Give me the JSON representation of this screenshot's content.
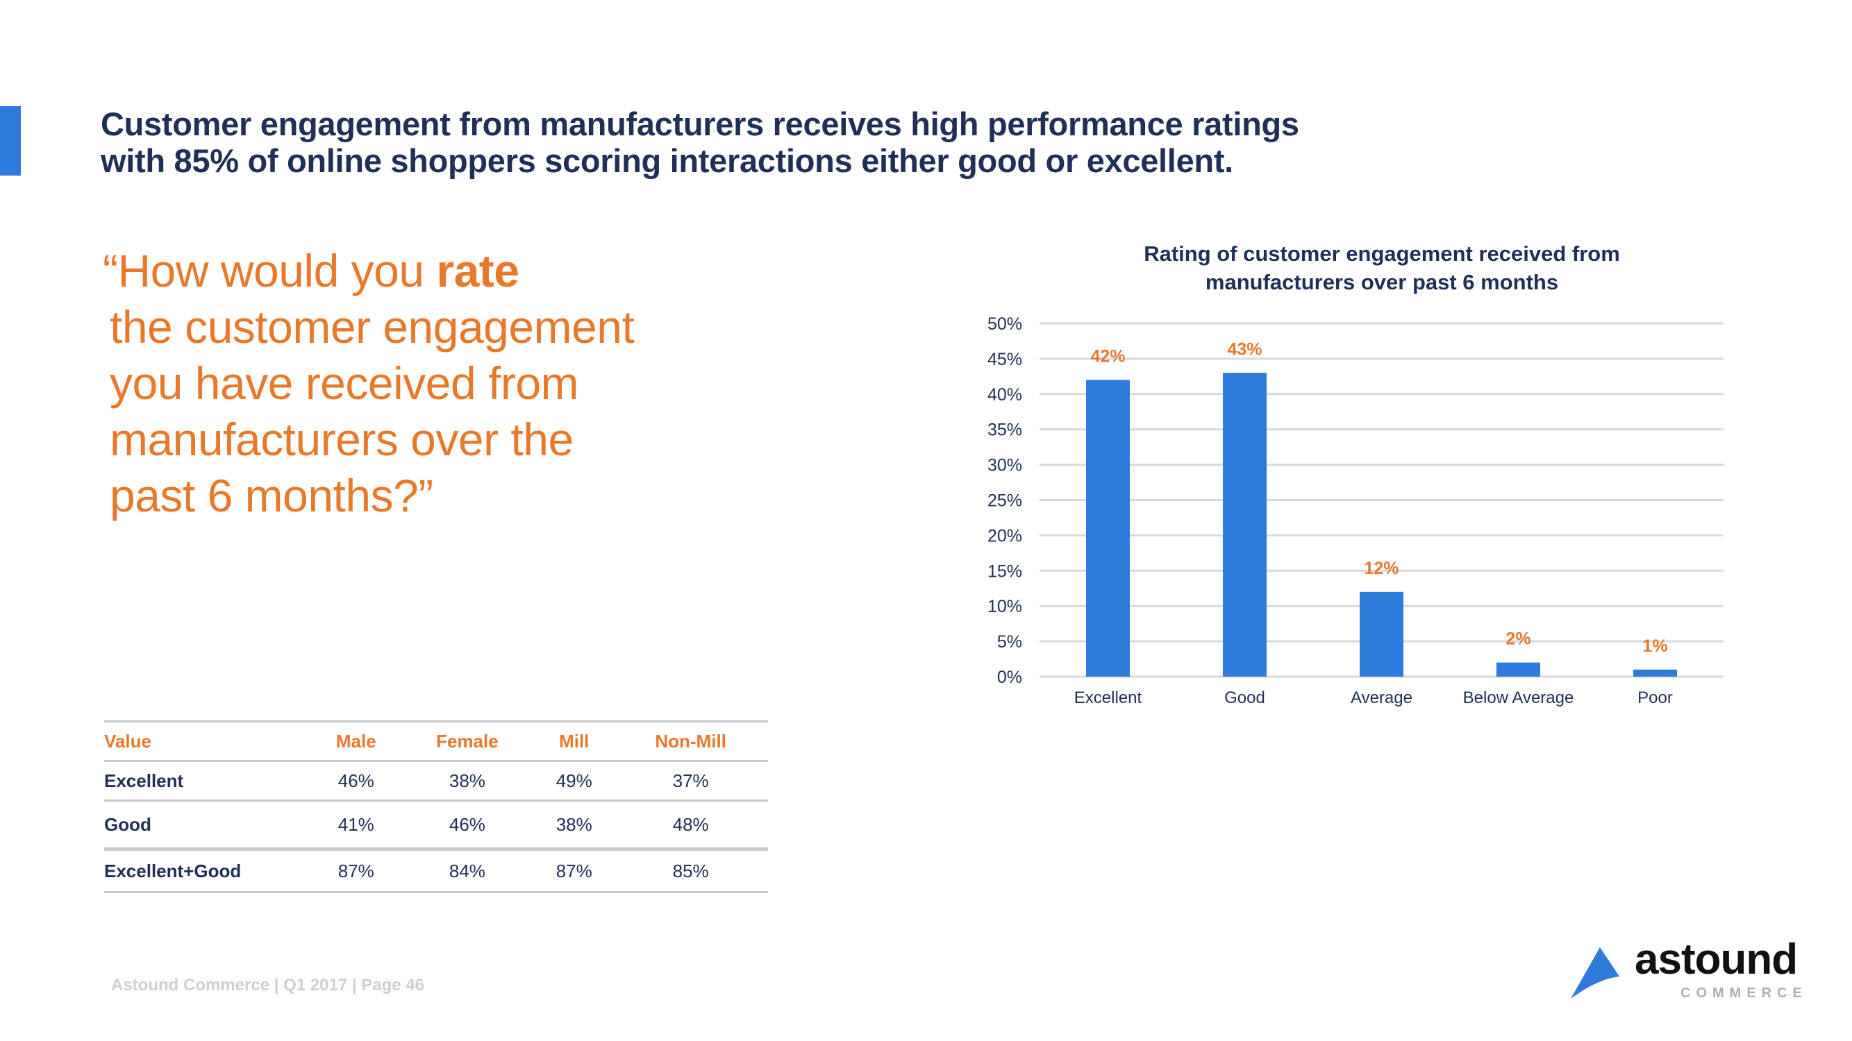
{
  "headline": {
    "line1": "Customer engagement from manufacturers receives high performance ratings",
    "line2": "with 85% of online shoppers scoring interactions either good or excellent."
  },
  "quote": {
    "line1_pre": "“How would you ",
    "line1_bold": "rate",
    "line2": "the customer engagement",
    "line3": "you have received from",
    "line4": "manufacturers over the",
    "line5": "past 6 months?”"
  },
  "colors": {
    "accent": "#2F7BDB",
    "bar": "#2F7BDB",
    "highlight": "#E8782A",
    "text": "#1F2F57",
    "grid": "#D9D9D9"
  },
  "chart_data": {
    "type": "bar",
    "title_line1": "Rating of customer engagement received from",
    "title_line2": "manufacturers over past 6 months",
    "categories": [
      "Excellent",
      "Good",
      "Average",
      "Below Average",
      "Poor"
    ],
    "values": [
      42,
      43,
      12,
      2,
      1
    ],
    "value_labels": [
      "42%",
      "43%",
      "12%",
      "2%",
      "1%"
    ],
    "xlabel": "",
    "ylabel": "",
    "ylim": [
      0,
      50
    ],
    "yticks": [
      0,
      5,
      10,
      15,
      20,
      25,
      30,
      35,
      40,
      45,
      50
    ],
    "ytick_labels": [
      "0%",
      "5%",
      "10%",
      "15%",
      "20%",
      "25%",
      "30%",
      "35%",
      "40%",
      "45%",
      "50%"
    ],
    "grid": true,
    "legend": "none"
  },
  "table": {
    "headers": [
      "Value",
      "Male",
      "Female",
      "Mill",
      "Non-Mill"
    ],
    "rows": [
      {
        "label": "Excellent",
        "cells": [
          "46%",
          "38%",
          "49%",
          "37%"
        ]
      },
      {
        "label": "Good",
        "cells": [
          "41%",
          "46%",
          "38%",
          "48%"
        ]
      },
      {
        "label": "Excellent+Good",
        "cells": [
          "87%",
          "84%",
          "87%",
          "85%"
        ]
      }
    ]
  },
  "footer": {
    "text": "Astound Commerce | Q1 2017 | Page 46"
  },
  "logo": {
    "word": "astound",
    "sub": "COMMERCE"
  }
}
